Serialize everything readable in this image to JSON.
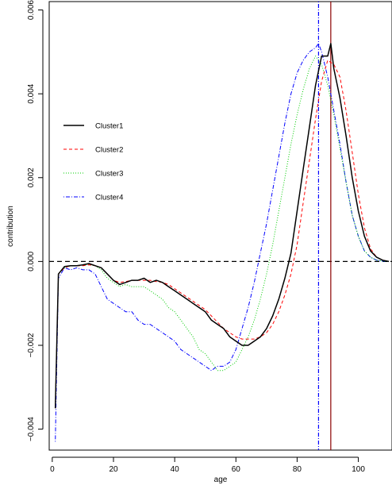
{
  "chart_data": {
    "type": "line",
    "title": "",
    "xlabel": "age",
    "ylabel": "contribution",
    "xlim": [
      -1,
      111
    ],
    "ylim": [
      -0.0045,
      0.0062
    ],
    "grid": false,
    "legend_position": "left",
    "x_ticks": [
      {
        "value": 0,
        "label": "0"
      },
      {
        "value": 20,
        "label": "20"
      },
      {
        "value": 40,
        "label": "40"
      },
      {
        "value": 60,
        "label": "60"
      },
      {
        "value": 80,
        "label": "80"
      },
      {
        "value": 100,
        "label": "100"
      }
    ],
    "y_ticks": [
      {
        "value": -0.004,
        "label": "−0.004"
      },
      {
        "value": -0.002,
        "label": "−0.002"
      },
      {
        "value": 0.0,
        "label": "0.000"
      },
      {
        "value": 0.002,
        "label": "0.002"
      },
      {
        "value": 0.004,
        "label": "0.004"
      },
      {
        "value": 0.006,
        "label": "0.006"
      }
    ],
    "reference_lines": [
      {
        "orientation": "horizontal",
        "value": 0.0,
        "color": "#000000",
        "dash": "dashed"
      },
      {
        "orientation": "vertical",
        "value": 87,
        "color": "#0000ff",
        "dash": "dotdash"
      },
      {
        "orientation": "vertical",
        "value": 91,
        "color": "#8b0000",
        "dash": "solid"
      }
    ],
    "series": [
      {
        "name": "Cluster1",
        "color": "#000000",
        "dash": "solid",
        "width": 1.5,
        "x": [
          1,
          2,
          4,
          6,
          8,
          10,
          12,
          14,
          16,
          18,
          20,
          22,
          24,
          26,
          28,
          30,
          32,
          34,
          36,
          38,
          40,
          42,
          44,
          46,
          48,
          50,
          52,
          54,
          56,
          58,
          60,
          62,
          64,
          66,
          68,
          70,
          72,
          74,
          76,
          78,
          80,
          82,
          84,
          86,
          88,
          90,
          91,
          92,
          94,
          96,
          98,
          100,
          102,
          104,
          106,
          108,
          110
        ],
        "y": [
          -0.0035,
          -0.0003,
          -0.00012,
          -0.0001,
          -0.0001,
          -8e-05,
          -5e-05,
          -0.0001,
          -0.00015,
          -0.0003,
          -0.00045,
          -0.00055,
          -0.0005,
          -0.00045,
          -0.00045,
          -0.0004,
          -0.0005,
          -0.00045,
          -0.0005,
          -0.0006,
          -0.0007,
          -0.0008,
          -0.0009,
          -0.001,
          -0.0011,
          -0.0012,
          -0.0014,
          -0.0015,
          -0.0016,
          -0.0018,
          -0.0019,
          -0.002,
          -0.002,
          -0.0019,
          -0.0018,
          -0.0016,
          -0.0013,
          -0.0009,
          -0.0004,
          0.0002,
          0.0012,
          0.0022,
          0.0032,
          0.0042,
          0.0049,
          0.0049,
          0.0052,
          0.0046,
          0.0039,
          0.003,
          0.002,
          0.0012,
          0.0006,
          0.00025,
          0.0001,
          3e-05,
          0.0
        ]
      },
      {
        "name": "Cluster2",
        "color": "#ff0000",
        "dash": "dashed",
        "width": 1,
        "x": [
          1,
          2,
          4,
          6,
          8,
          10,
          12,
          14,
          16,
          18,
          20,
          22,
          24,
          26,
          28,
          30,
          32,
          34,
          36,
          38,
          40,
          42,
          44,
          46,
          48,
          50,
          52,
          54,
          56,
          58,
          60,
          62,
          64,
          66,
          68,
          70,
          72,
          74,
          76,
          78,
          80,
          82,
          84,
          86,
          88,
          90,
          92,
          94,
          96,
          98,
          100,
          102,
          104,
          106,
          108,
          110
        ],
        "y": [
          -0.0035,
          -0.0003,
          -0.00015,
          -0.0001,
          -0.0001,
          -0.0001,
          -8e-05,
          -0.0001,
          -0.00015,
          -0.0003,
          -0.00045,
          -0.0005,
          -0.00048,
          -0.00045,
          -0.00045,
          -0.00045,
          -0.00045,
          -0.00048,
          -0.0005,
          -0.00055,
          -0.00065,
          -0.00075,
          -0.00085,
          -0.00095,
          -0.00105,
          -0.00115,
          -0.0013,
          -0.00145,
          -0.0016,
          -0.0017,
          -0.0018,
          -0.00185,
          -0.00185,
          -0.00185,
          -0.0018,
          -0.0017,
          -0.0015,
          -0.0012,
          -0.0008,
          -0.0003,
          0.0004,
          0.0014,
          0.0024,
          0.0034,
          0.0043,
          0.0048,
          0.0047,
          0.0044,
          0.0036,
          0.0026,
          0.0016,
          0.0008,
          0.0003,
          0.0001,
          3e-05,
          0.0
        ]
      },
      {
        "name": "Cluster3",
        "color": "#00cc00",
        "dash": "dotted",
        "width": 1,
        "x": [
          1,
          2,
          4,
          6,
          8,
          10,
          12,
          14,
          16,
          18,
          20,
          22,
          24,
          26,
          28,
          30,
          32,
          34,
          36,
          38,
          40,
          42,
          44,
          46,
          48,
          50,
          52,
          54,
          56,
          58,
          60,
          62,
          64,
          66,
          68,
          70,
          72,
          74,
          76,
          78,
          80,
          82,
          84,
          86,
          88,
          90,
          92,
          94,
          96,
          98,
          100,
          102,
          104,
          106,
          108,
          110
        ],
        "y": [
          -0.0035,
          -0.0003,
          -0.00015,
          -0.0001,
          -0.0001,
          -8e-05,
          -8e-05,
          -0.0001,
          -0.0002,
          -0.0004,
          -0.0005,
          -0.0006,
          -0.00055,
          -0.0006,
          -0.0006,
          -0.0006,
          -0.0007,
          -0.0008,
          -0.0009,
          -0.0011,
          -0.0012,
          -0.0014,
          -0.0016,
          -0.0018,
          -0.0021,
          -0.0022,
          -0.0024,
          -0.0026,
          -0.0026,
          -0.0025,
          -0.0024,
          -0.0021,
          -0.0018,
          -0.0014,
          -0.0009,
          -0.0003,
          0.0004,
          0.0012,
          0.002,
          0.0028,
          0.0035,
          0.0041,
          0.0046,
          0.0049,
          0.0047,
          0.0042,
          0.0035,
          0.0027,
          0.0019,
          0.0011,
          0.0006,
          0.00025,
          0.0001,
          3e-05,
          1e-05,
          0.0
        ]
      },
      {
        "name": "Cluster4",
        "color": "#0000ff",
        "dash": "dotdash",
        "width": 1,
        "x": [
          1,
          2,
          4,
          6,
          8,
          10,
          12,
          14,
          16,
          18,
          20,
          22,
          24,
          26,
          28,
          30,
          32,
          34,
          36,
          38,
          40,
          42,
          44,
          46,
          48,
          50,
          52,
          54,
          56,
          58,
          60,
          62,
          64,
          66,
          68,
          70,
          72,
          74,
          76,
          78,
          80,
          82,
          84,
          86,
          87,
          88,
          90,
          92,
          94,
          96,
          98,
          100,
          102,
          104,
          106,
          108,
          110
        ],
        "y": [
          -0.0043,
          -0.0004,
          -0.00015,
          -0.0002,
          -0.00015,
          -0.0002,
          -0.0002,
          -0.0003,
          -0.0006,
          -0.0009,
          -0.001,
          -0.0011,
          -0.0012,
          -0.0012,
          -0.0014,
          -0.0015,
          -0.0015,
          -0.0016,
          -0.0017,
          -0.0018,
          -0.0019,
          -0.0021,
          -0.0022,
          -0.0023,
          -0.0024,
          -0.0025,
          -0.0026,
          -0.0025,
          -0.0025,
          -0.0024,
          -0.0021,
          -0.0016,
          -0.0011,
          -0.0005,
          0.0002,
          0.0009,
          0.0017,
          0.0025,
          0.0033,
          0.004,
          0.0045,
          0.0048,
          0.005,
          0.0051,
          0.0052,
          0.005,
          0.0044,
          0.0036,
          0.0028,
          0.0019,
          0.0011,
          0.0006,
          0.00025,
          0.0001,
          3e-05,
          1e-05,
          0.0
        ]
      }
    ]
  }
}
